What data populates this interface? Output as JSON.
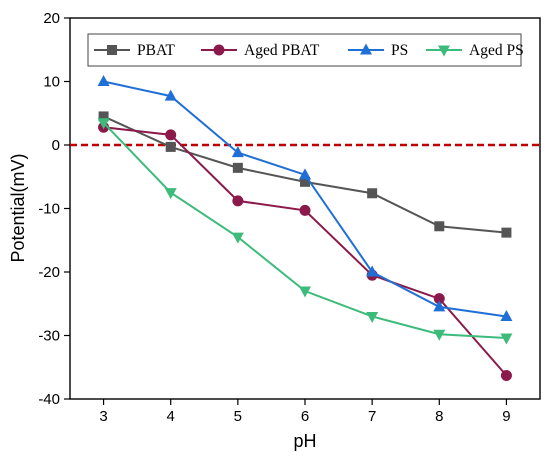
{
  "chart_data": {
    "type": "line",
    "xlabel": "pH",
    "ylabel": "Potential(mV)",
    "xlim": [
      2.5,
      9.5
    ],
    "ylim": [
      -40,
      20
    ],
    "xticks": [
      3,
      4,
      5,
      6,
      7,
      8,
      9
    ],
    "yticks": [
      -40,
      -30,
      -20,
      -10,
      0,
      10,
      20
    ],
    "reference_line": {
      "y": 0,
      "style": "dashed",
      "color": "#c00000"
    },
    "legend_position": "top",
    "x": [
      3,
      4,
      5,
      6,
      7,
      8,
      9
    ],
    "series": [
      {
        "name": "PBAT",
        "values": [
          4.5,
          -0.3,
          -3.6,
          -5.8,
          -7.6,
          -12.8,
          -13.8
        ],
        "color": "#555555",
        "marker": "square"
      },
      {
        "name": "Aged PBAT",
        "values": [
          2.8,
          1.6,
          -8.8,
          -10.3,
          -20.5,
          -24.2,
          -36.3
        ],
        "color": "#8b1a4a",
        "marker": "circle"
      },
      {
        "name": "PS",
        "values": [
          10.0,
          7.7,
          -1.2,
          -4.7,
          -20.0,
          -25.5,
          -27.0
        ],
        "color": "#1f6fd6",
        "marker": "triangle-up"
      },
      {
        "name": "Aged PS",
        "values": [
          3.5,
          -7.5,
          -14.5,
          -23.0,
          -27.0,
          -29.8,
          -30.4
        ],
        "color": "#3dbb7a",
        "marker": "triangle-down"
      }
    ]
  }
}
